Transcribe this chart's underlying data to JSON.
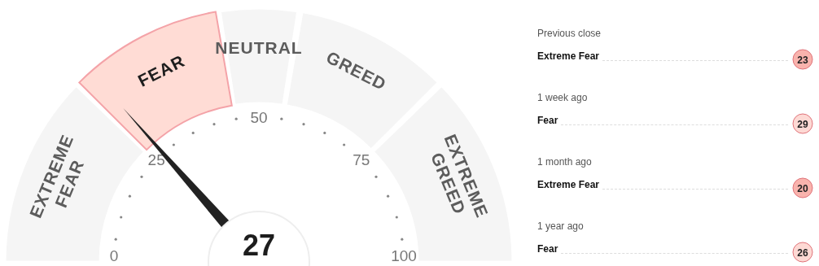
{
  "chart_data": [
    {
      "type": "donut",
      "categories": [
        "EXTREME FEAR",
        "FEAR",
        "NEUTRAL",
        "GREED",
        "EXTREME GREED"
      ],
      "values": [
        25,
        20,
        10,
        20,
        25
      ],
      "colors": [
        "#f5f5f5",
        "#ffdcd5",
        "#f5f5f5",
        "#f5f5f5",
        "#f5f5f5"
      ],
      "needle": "FEAR",
      "annotations": [
        "0",
        "25",
        "50",
        "75",
        "100",
        "27"
      ]
    },
    {
      "type": "other",
      "categories": [
        "Previous close",
        "1 week ago",
        "1 month ago",
        "1 year ago"
      ],
      "annotations": [
        "Extreme Fear",
        "Fear",
        "Extreme Fear",
        "Fear"
      ],
      "values": [
        23,
        29,
        20,
        26
      ],
      "data_labels": true,
      "colors": [
        "#f9b3ad",
        "#fdd9d4",
        "#f9b3ad",
        "#fdd9d4"
      ]
    }
  ]
}
